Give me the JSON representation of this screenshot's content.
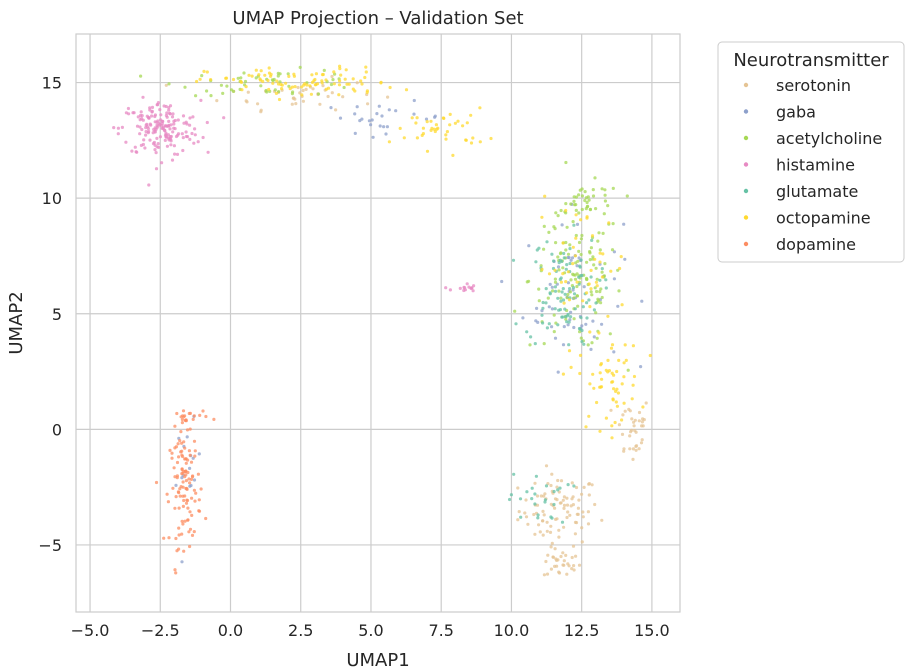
{
  "chart_data": {
    "type": "scatter",
    "title": "UMAP Projection – Validation Set",
    "xlabel": "UMAP1",
    "ylabel": "UMAP2",
    "xlim": [
      -5.5,
      16.0
    ],
    "ylim": [
      -7.9,
      17.1
    ],
    "xticks": [
      -5.0,
      -2.5,
      0.0,
      2.5,
      5.0,
      7.5,
      10.0,
      12.5,
      15.0
    ],
    "xtick_labels": [
      "−5.0",
      "−2.5",
      "0.0",
      "2.5",
      "5.0",
      "7.5",
      "10.0",
      "12.5",
      "15.0"
    ],
    "yticks": [
      -5,
      0,
      5,
      10,
      15
    ],
    "ytick_labels": [
      "−5",
      "0",
      "5",
      "10",
      "15"
    ],
    "grid": true,
    "legend": {
      "title": "Neurotransmitter",
      "placement": "outside-upper-right",
      "entries": [
        "serotonin",
        "gaba",
        "acetylcholine",
        "histamine",
        "glutamate",
        "octopamine",
        "dopamine"
      ]
    },
    "series": [
      {
        "name": "serotonin",
        "color": "#e5c494",
        "clusters": [
          {
            "cx": 11.7,
            "cy": -3.5,
            "sx": 1.3,
            "sy": 1.4,
            "n": 90
          },
          {
            "cx": 11.8,
            "cy": -5.8,
            "sx": 0.6,
            "sy": 0.6,
            "n": 30
          },
          {
            "cx": 14.3,
            "cy": 0.0,
            "sx": 0.6,
            "sy": 1.4,
            "n": 35
          },
          {
            "cx": 2.5,
            "cy": 14.5,
            "sx": 2.5,
            "sy": 0.6,
            "n": 40
          }
        ]
      },
      {
        "name": "gaba",
        "color": "#8da0cb",
        "clusters": [
          {
            "cx": 12.2,
            "cy": 6.0,
            "sx": 1.6,
            "sy": 3.0,
            "n": 60
          },
          {
            "cx": -1.5,
            "cy": -2.0,
            "sx": 0.4,
            "sy": 2.0,
            "n": 15
          },
          {
            "cx": 5.5,
            "cy": 13.5,
            "sx": 2.0,
            "sy": 0.6,
            "n": 25
          }
        ]
      },
      {
        "name": "acetylcholine",
        "color": "#a6d854",
        "clusters": [
          {
            "cx": 12.3,
            "cy": 6.5,
            "sx": 1.5,
            "sy": 2.8,
            "n": 130
          },
          {
            "cx": 12.8,
            "cy": 9.8,
            "sx": 1.0,
            "sy": 0.8,
            "n": 35
          },
          {
            "cx": 1.5,
            "cy": 15.0,
            "sx": 3.0,
            "sy": 0.5,
            "n": 50
          }
        ]
      },
      {
        "name": "histamine",
        "color": "#e78ac3",
        "clusters": [
          {
            "cx": -2.5,
            "cy": 13.0,
            "sx": 1.3,
            "sy": 1.1,
            "n": 170
          },
          {
            "cx": 8.3,
            "cy": 6.1,
            "sx": 0.4,
            "sy": 0.2,
            "n": 14
          }
        ]
      },
      {
        "name": "glutamate",
        "color": "#66c2a5",
        "clusters": [
          {
            "cx": 11.8,
            "cy": 6.0,
            "sx": 1.2,
            "sy": 2.2,
            "n": 90
          },
          {
            "cx": 11.0,
            "cy": -3.0,
            "sx": 1.0,
            "sy": 1.0,
            "n": 25
          }
        ]
      },
      {
        "name": "octopamine",
        "color": "#ffd92f",
        "clusters": [
          {
            "cx": 2.5,
            "cy": 15.0,
            "sx": 3.0,
            "sy": 0.6,
            "n": 90
          },
          {
            "cx": 7.5,
            "cy": 13.0,
            "sx": 1.5,
            "sy": 0.8,
            "n": 40
          },
          {
            "cx": 13.5,
            "cy": 2.0,
            "sx": 1.0,
            "sy": 1.8,
            "n": 55
          },
          {
            "cx": 12.5,
            "cy": 7.0,
            "sx": 1.5,
            "sy": 2.5,
            "n": 45
          }
        ]
      },
      {
        "name": "dopamine",
        "color": "#fc8d62",
        "clusters": [
          {
            "cx": -1.6,
            "cy": -2.5,
            "sx": 0.5,
            "sy": 2.3,
            "n": 110
          },
          {
            "cx": -1.5,
            "cy": 0.5,
            "sx": 0.6,
            "sy": 0.4,
            "n": 20
          }
        ]
      }
    ]
  }
}
